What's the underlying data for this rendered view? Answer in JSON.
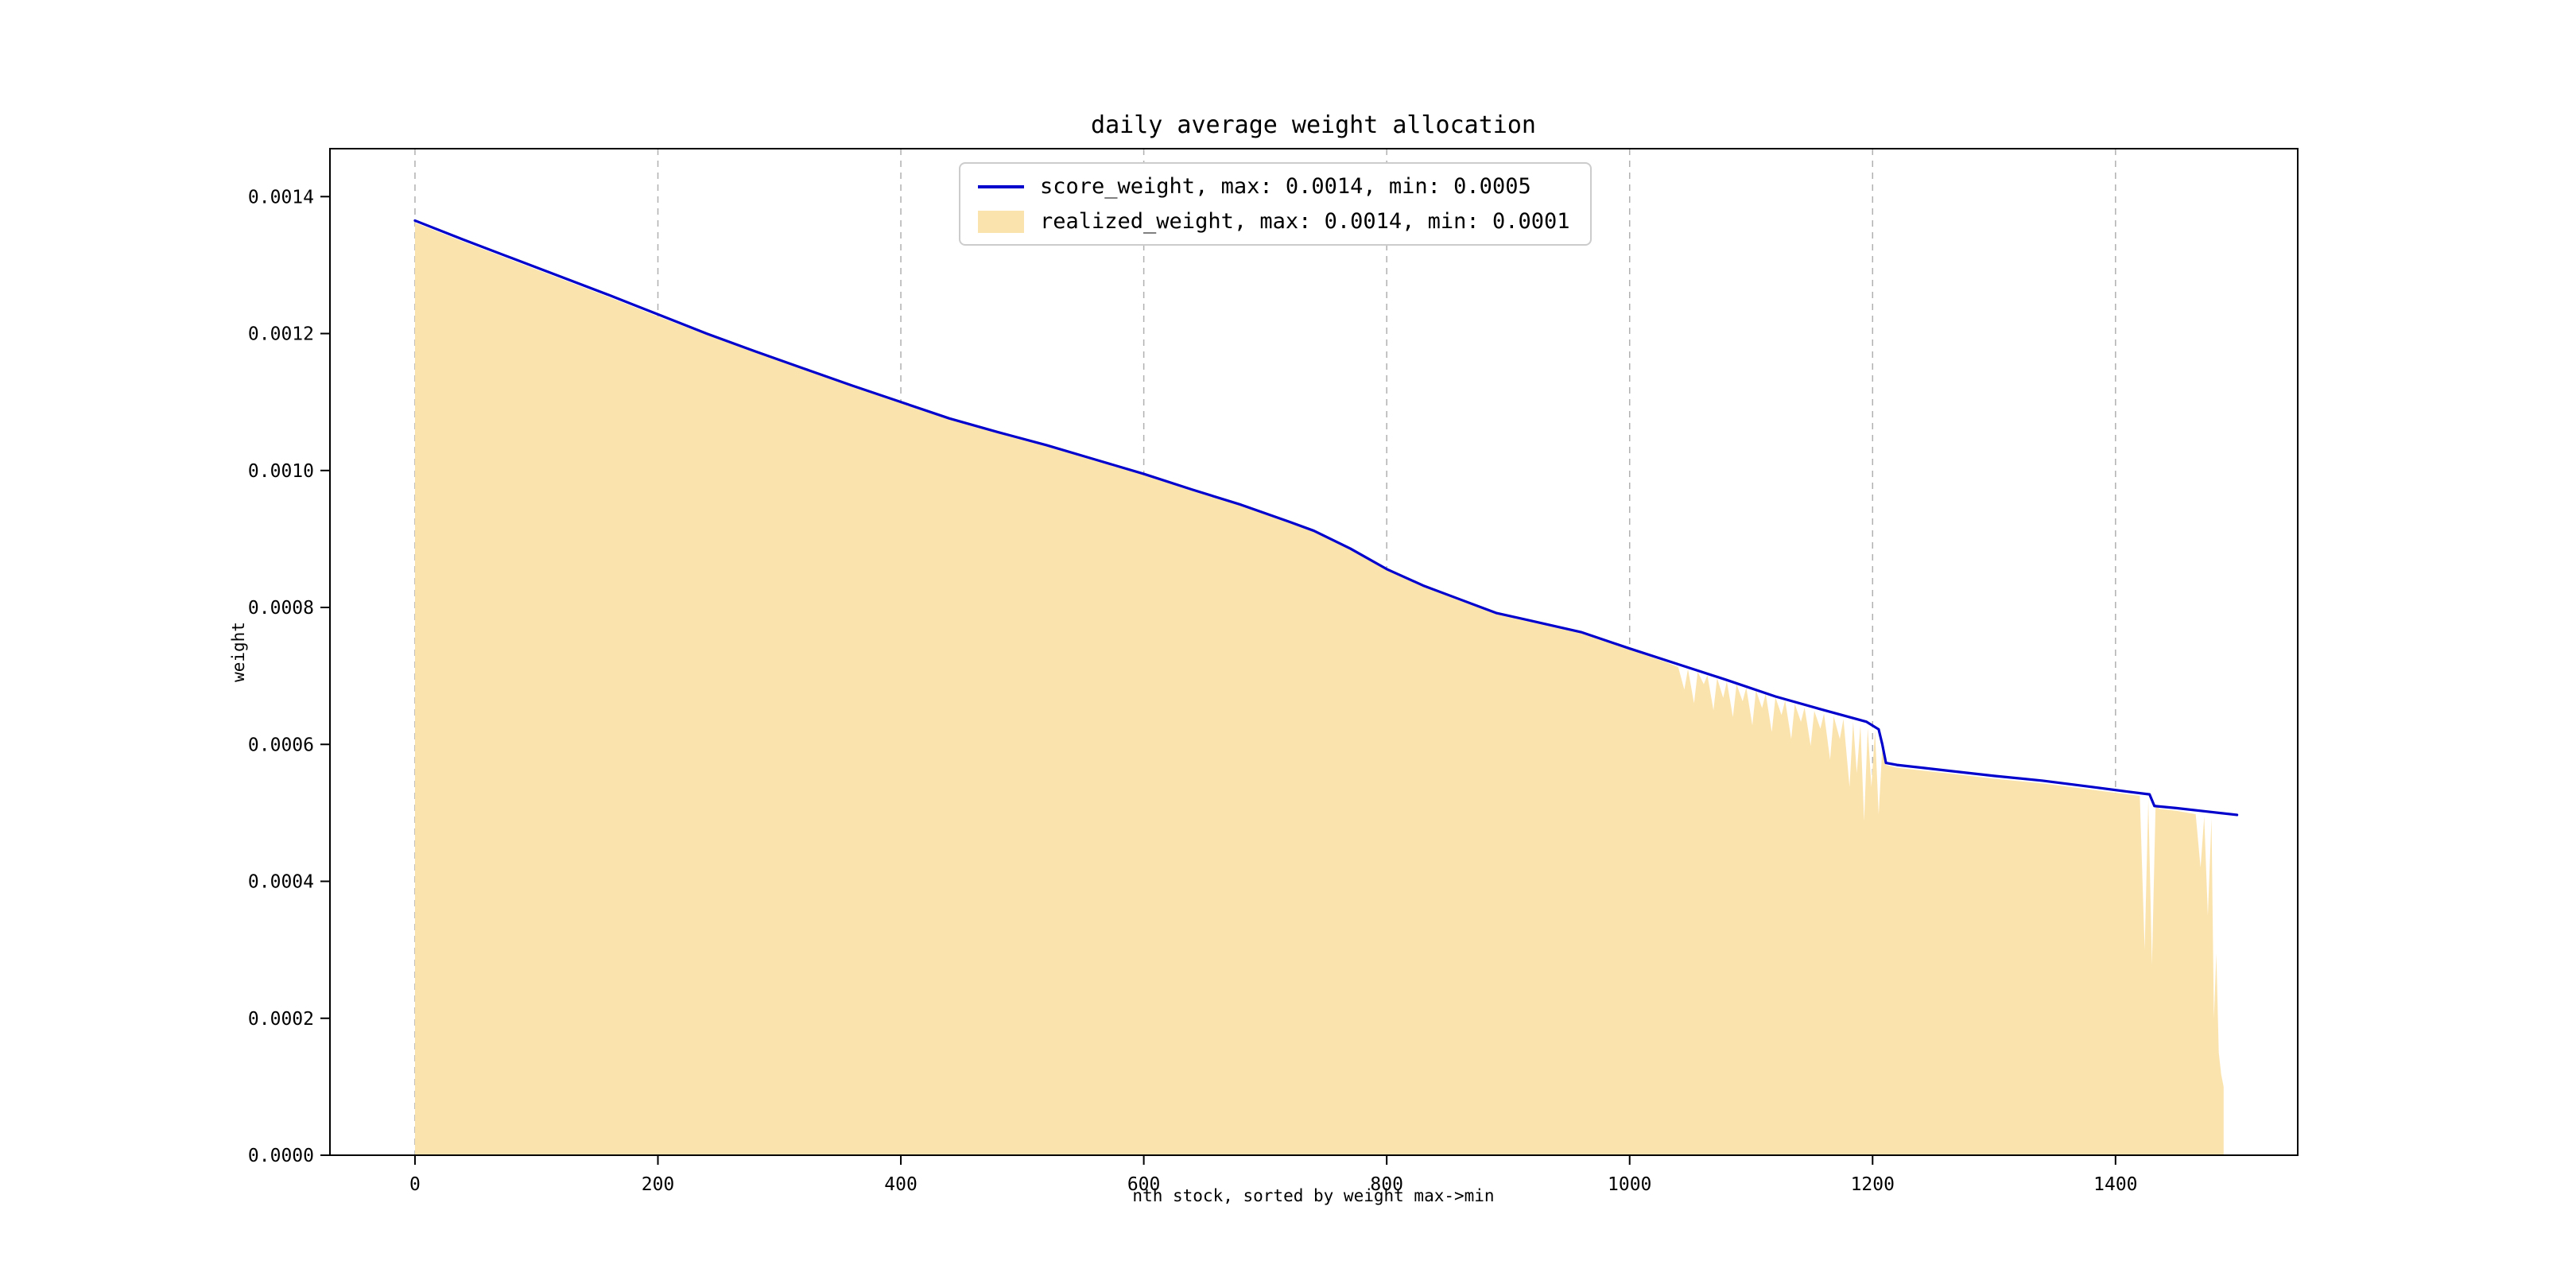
{
  "figure": {
    "title": "daily average weight allocation",
    "xlabel": "nth stock, sorted by weight max->min",
    "ylabel": "weight"
  },
  "legend": {
    "items": [
      {
        "label": "score_weight, max: 0.0014, min: 0.0005",
        "swatch": "line",
        "color": "#0000cc"
      },
      {
        "label": "realized_weight, max: 0.0014, min: 0.0001",
        "swatch": "patch",
        "color": "#fbe3ae"
      }
    ]
  },
  "chart_data": {
    "type": "line",
    "title": "daily average weight allocation",
    "xlabel": "nth stock, sorted by weight max->min",
    "ylabel": "weight",
    "xlim": [
      -70,
      1550
    ],
    "ylim": [
      0,
      0.00147
    ],
    "xticks": [
      0,
      200,
      400,
      600,
      800,
      1000,
      1200,
      1400
    ],
    "xtick_labels": [
      "0",
      "200",
      "400",
      "600",
      "800",
      "1000",
      "1200",
      "1400"
    ],
    "yticks": [
      0,
      0.0002,
      0.0004,
      0.0006,
      0.0008,
      0.001,
      0.0012,
      0.0014
    ],
    "ytick_labels": [
      "0.0000",
      "0.0002",
      "0.0004",
      "0.0006",
      "0.0008",
      "0.0010",
      "0.0012",
      "0.0014"
    ],
    "grid": {
      "vertical": true,
      "style": "dashed",
      "color": "#b0b0b0"
    },
    "legend_position": "upper center",
    "series": [
      {
        "name": "score_weight",
        "type": "line",
        "color": "#0000cc",
        "max": 0.0014,
        "min": 0.0005,
        "points": [
          [
            0,
            0.001365
          ],
          [
            40,
            0.001337
          ],
          [
            80,
            0.00131
          ],
          [
            120,
            0.001283
          ],
          [
            160,
            0.001256
          ],
          [
            200,
            0.001228
          ],
          [
            240,
            0.0012
          ],
          [
            280,
            0.001174
          ],
          [
            320,
            0.001149
          ],
          [
            360,
            0.001124
          ],
          [
            400,
            0.0011
          ],
          [
            440,
            0.001076
          ],
          [
            480,
            0.001056
          ],
          [
            520,
            0.001037
          ],
          [
            560,
            0.001016
          ],
          [
            600,
            0.000995
          ],
          [
            640,
            0.000972
          ],
          [
            680,
            0.00095
          ],
          [
            720,
            0.000925
          ],
          [
            740,
            0.000912
          ],
          [
            770,
            0.000886
          ],
          [
            800,
            0.000856
          ],
          [
            830,
            0.000832
          ],
          [
            860,
            0.000812
          ],
          [
            890,
            0.000792
          ],
          [
            920,
            0.00078
          ],
          [
            960,
            0.000764
          ],
          [
            1000,
            0.00074
          ],
          [
            1040,
            0.000717
          ],
          [
            1080,
            0.000694
          ],
          [
            1120,
            0.00067
          ],
          [
            1160,
            0.00065
          ],
          [
            1195,
            0.000633
          ],
          [
            1205,
            0.000622
          ],
          [
            1208,
            0.0006
          ],
          [
            1211,
            0.000573
          ],
          [
            1220,
            0.00057
          ],
          [
            1260,
            0.000562
          ],
          [
            1300,
            0.000554
          ],
          [
            1340,
            0.000547
          ],
          [
            1380,
            0.000538
          ],
          [
            1410,
            0.000531
          ],
          [
            1428,
            0.000527
          ],
          [
            1432,
            0.00051
          ],
          [
            1450,
            0.000507
          ],
          [
            1470,
            0.000503
          ],
          [
            1500,
            0.000497
          ]
        ]
      },
      {
        "name": "realized_weight",
        "type": "area",
        "color": "#fbe3ae",
        "max": 0.0014,
        "min": 0.0001,
        "points": [
          [
            0,
            0.001362
          ],
          [
            40,
            0.001334
          ],
          [
            80,
            0.001307
          ],
          [
            120,
            0.00128
          ],
          [
            160,
            0.001253
          ],
          [
            200,
            0.001225
          ],
          [
            240,
            0.001198
          ],
          [
            280,
            0.001172
          ],
          [
            320,
            0.001147
          ],
          [
            360,
            0.001122
          ],
          [
            400,
            0.001098
          ],
          [
            440,
            0.001074
          ],
          [
            480,
            0.001054
          ],
          [
            520,
            0.001035
          ],
          [
            560,
            0.001014
          ],
          [
            600,
            0.000993
          ],
          [
            640,
            0.00097
          ],
          [
            680,
            0.000948
          ],
          [
            720,
            0.000923
          ],
          [
            740,
            0.00091
          ],
          [
            770,
            0.000884
          ],
          [
            800,
            0.000854
          ],
          [
            830,
            0.00083
          ],
          [
            860,
            0.00081
          ],
          [
            890,
            0.00079
          ],
          [
            920,
            0.000778
          ],
          [
            960,
            0.000762
          ],
          [
            1000,
            0.000738
          ],
          [
            1030,
            0.00072
          ],
          [
            1040,
            0.000713
          ],
          [
            1045,
            0.00068
          ],
          [
            1048,
            0.00071
          ],
          [
            1053,
            0.00066
          ],
          [
            1056,
            0.000706
          ],
          [
            1061,
            0.000688
          ],
          [
            1064,
            0.000701
          ],
          [
            1069,
            0.00065
          ],
          [
            1072,
            0.000697
          ],
          [
            1077,
            0.000668
          ],
          [
            1080,
            0.000692
          ],
          [
            1085,
            0.00064
          ],
          [
            1088,
            0.000688
          ],
          [
            1093,
            0.000663
          ],
          [
            1096,
            0.000683
          ],
          [
            1101,
            0.000628
          ],
          [
            1104,
            0.000679
          ],
          [
            1109,
            0.000653
          ],
          [
            1112,
            0.000674
          ],
          [
            1117,
            0.000618
          ],
          [
            1120,
            0.000669
          ],
          [
            1125,
            0.000643
          ],
          [
            1128,
            0.000664
          ],
          [
            1133,
            0.000608
          ],
          [
            1136,
            0.000659
          ],
          [
            1141,
            0.000633
          ],
          [
            1144,
            0.000654
          ],
          [
            1149,
            0.000598
          ],
          [
            1152,
            0.000649
          ],
          [
            1157,
            0.000623
          ],
          [
            1160,
            0.000645
          ],
          [
            1165,
            0.000578
          ],
          [
            1168,
            0.000641
          ],
          [
            1173,
            0.000608
          ],
          [
            1176,
            0.000637
          ],
          [
            1181,
            0.000538
          ],
          [
            1184,
            0.000633
          ],
          [
            1187,
            0.000558
          ],
          [
            1190,
            0.000628
          ],
          [
            1193,
            0.000488
          ],
          [
            1196,
            0.000624
          ],
          [
            1199,
            0.000538
          ],
          [
            1202,
            0.00062
          ],
          [
            1205,
            0.000498
          ],
          [
            1208,
            0.000596
          ],
          [
            1211,
            0.00057
          ],
          [
            1220,
            0.000566
          ],
          [
            1260,
            0.000558
          ],
          [
            1300,
            0.00055
          ],
          [
            1340,
            0.000543
          ],
          [
            1380,
            0.000534
          ],
          [
            1410,
            0.000527
          ],
          [
            1420,
            0.000525
          ],
          [
            1424,
            0.0003
          ],
          [
            1427,
            0.00052
          ],
          [
            1430,
            0.000278
          ],
          [
            1433,
            0.000513
          ],
          [
            1436,
            0.000506
          ],
          [
            1450,
            0.000503
          ],
          [
            1460,
            0.0005
          ],
          [
            1466,
            0.000498
          ],
          [
            1470,
            0.00042
          ],
          [
            1473,
            0.000495
          ],
          [
            1476,
            0.00035
          ],
          [
            1479,
            0.000492
          ],
          [
            1481,
            0.0002
          ],
          [
            1483,
            0.000295
          ],
          [
            1485,
            0.00015
          ],
          [
            1487,
            0.000118
          ],
          [
            1489,
            0.0001
          ]
        ]
      }
    ]
  }
}
